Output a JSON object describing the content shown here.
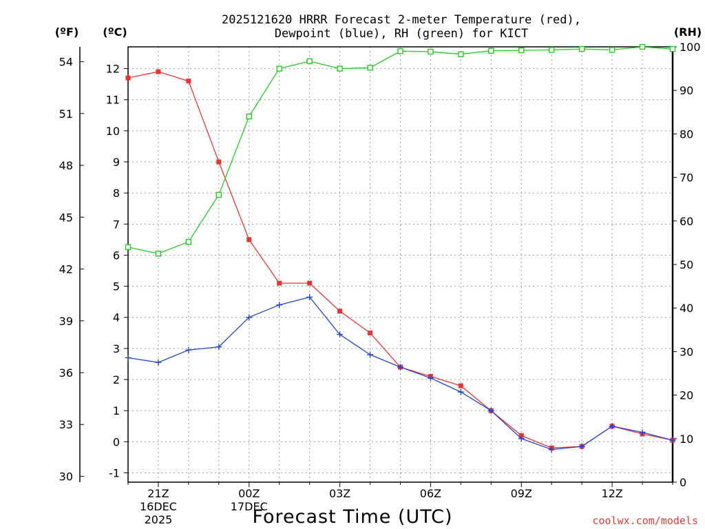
{
  "chart_data": {
    "type": "line",
    "title_lines": [
      "2025121620 HRRR Forecast 2-meter Temperature (red),",
      "Dewpoint (blue), RH (green) for KICT"
    ],
    "xlabel": "Forecast Time (UTC)",
    "units": {
      "left_f": "(ºF)",
      "left_c": "(ºC)",
      "right": "(RH)"
    },
    "credit": "coolwx.com/models",
    "x_hours": [
      20,
      21,
      22,
      23,
      24,
      25,
      26,
      27,
      28,
      29,
      30,
      31,
      32,
      33,
      34,
      35,
      36,
      37,
      38
    ],
    "x_range": [
      20,
      38
    ],
    "x_ticks": [
      {
        "hour": 21,
        "lines": [
          "21Z",
          "16DEC",
          "2025"
        ]
      },
      {
        "hour": 24,
        "lines": [
          "00Z",
          "17DEC"
        ]
      },
      {
        "hour": 27,
        "lines": [
          "03Z"
        ]
      },
      {
        "hour": 30,
        "lines": [
          "06Z"
        ]
      },
      {
        "hour": 33,
        "lines": [
          "09Z"
        ]
      },
      {
        "hour": 36,
        "lines": [
          "12Z"
        ]
      }
    ],
    "celsius_range": [
      -1.3,
      12.7
    ],
    "celsius_ticks": [
      "-1",
      "0",
      "1",
      "2",
      "3",
      "4",
      "5",
      "6",
      "7",
      "8",
      "9",
      "10",
      "11",
      "12"
    ],
    "fahrenheit_ticks": [
      "30",
      "33",
      "36",
      "39",
      "42",
      "45",
      "48",
      "51",
      "54"
    ],
    "rh_range": [
      0,
      100
    ],
    "rh_ticks": [
      "0",
      "10",
      "20",
      "30",
      "40",
      "50",
      "60",
      "70",
      "80",
      "90",
      "100"
    ],
    "colors": {
      "temperature": "#ee3333",
      "dewpoint": "#2244dd",
      "rh": "#22cc22",
      "grid": "#9a9a9a"
    },
    "series": [
      {
        "key": "temperature",
        "axis": "celsius",
        "marker": "filled-square",
        "values": [
          11.7,
          11.9,
          11.6,
          9.0,
          6.5,
          5.1,
          5.1,
          4.2,
          3.5,
          2.4,
          2.1,
          1.8,
          1.0,
          0.2,
          -0.2,
          -0.15,
          0.5,
          0.25,
          0.05
        ]
      },
      {
        "key": "dewpoint",
        "axis": "celsius",
        "marker": "plus",
        "values": [
          2.7,
          2.55,
          2.95,
          3.05,
          4.0,
          4.4,
          4.65,
          3.45,
          2.8,
          2.4,
          2.05,
          1.6,
          1.0,
          0.1,
          -0.25,
          -0.15,
          0.5,
          0.3,
          0.05
        ]
      },
      {
        "key": "rh",
        "axis": "rh",
        "marker": "open-square",
        "values": [
          54,
          52.5,
          55.2,
          66,
          84,
          95,
          96.7,
          95,
          95.2,
          99,
          98.9,
          98.3,
          99.1,
          99.2,
          99.3,
          99.5,
          99.3,
          100,
          99.5
        ]
      }
    ]
  }
}
